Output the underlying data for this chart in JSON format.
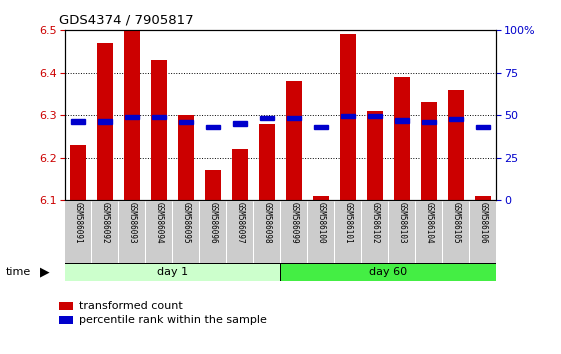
{
  "title": "GDS4374 / 7905817",
  "samples": [
    "GSM586091",
    "GSM586092",
    "GSM586093",
    "GSM586094",
    "GSM586095",
    "GSM586096",
    "GSM586097",
    "GSM586098",
    "GSM586099",
    "GSM586100",
    "GSM586101",
    "GSM586102",
    "GSM586103",
    "GSM586104",
    "GSM586105",
    "GSM586106"
  ],
  "bar_values": [
    6.23,
    6.47,
    6.5,
    6.43,
    6.3,
    6.17,
    6.22,
    6.28,
    6.38,
    6.11,
    6.49,
    6.31,
    6.39,
    6.33,
    6.36,
    6.11
  ],
  "percentile_values": [
    6.285,
    6.285,
    6.295,
    6.295,
    6.283,
    6.272,
    6.28,
    6.293,
    6.293,
    6.272,
    6.297,
    6.297,
    6.287,
    6.283,
    6.291,
    6.272
  ],
  "bar_color": "#cc0000",
  "percentile_color": "#0000cc",
  "bar_base": 6.1,
  "ylim_left": [
    6.1,
    6.5
  ],
  "ylim_right": [
    0,
    100
  ],
  "yticks_left": [
    6.1,
    6.2,
    6.3,
    6.4,
    6.5
  ],
  "yticks_right": [
    0,
    25,
    50,
    75,
    100
  ],
  "ytick_labels_right": [
    "0",
    "25",
    "50",
    "75",
    "100%"
  ],
  "day1_samples": 8,
  "day60_samples": 8,
  "day1_label": "day 1",
  "day60_label": "day 60",
  "time_label": "time",
  "legend_bar_label": "transformed count",
  "legend_pct_label": "percentile rank within the sample",
  "group1_color": "#ccffcc",
  "group2_color": "#44ee44",
  "tick_label_bg": "#cccccc",
  "background_color": "#ffffff"
}
